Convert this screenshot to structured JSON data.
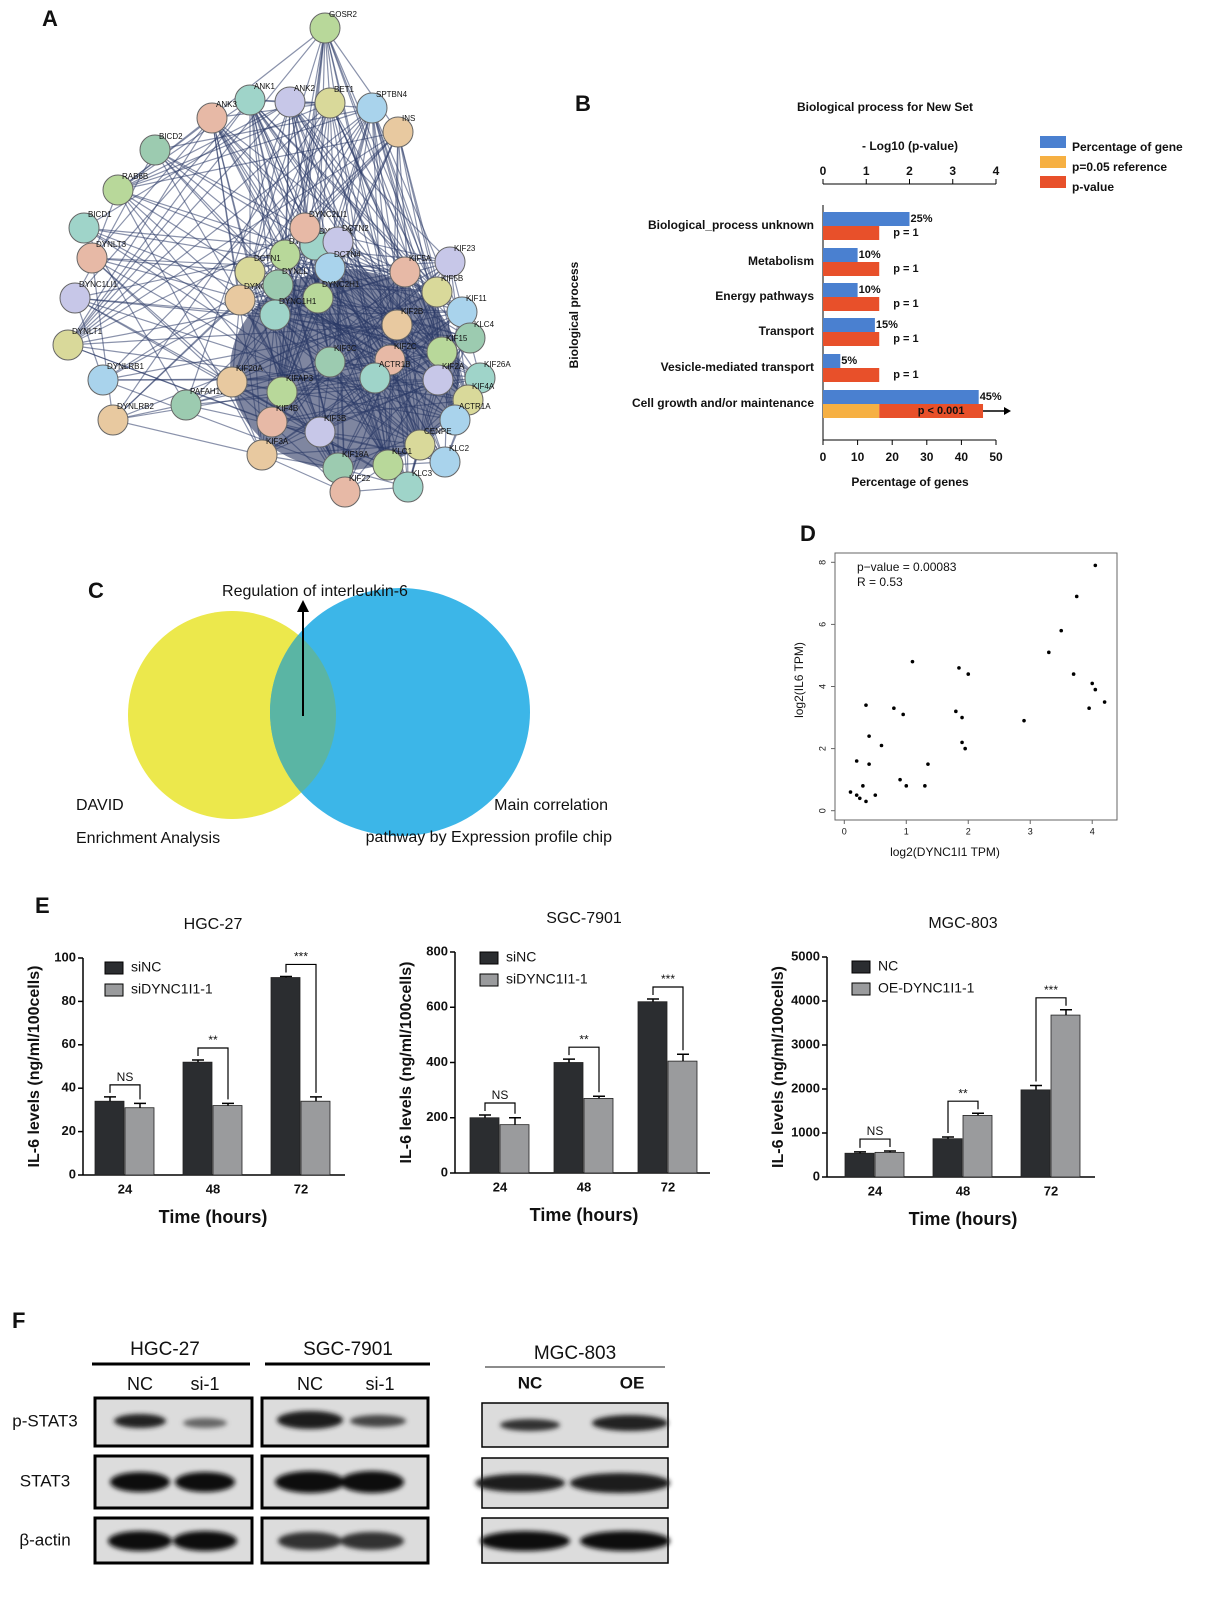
{
  "panel_labels": [
    "A",
    "B",
    "C",
    "D",
    "E",
    "F"
  ],
  "network": {
    "nodes": [
      "GOSR2",
      "ANK1",
      "ANK3",
      "ANK2",
      "BET1",
      "SPTBN4",
      "INS",
      "BICD2",
      "RAB6B",
      "BICD1",
      "DYNLT3",
      "DYNC1LI1",
      "DYNLT1",
      "DYNLRB1",
      "DYNLRB2",
      "PAFAH1B1",
      "DYNL",
      "DYNC1I1",
      "DYNC2LI1",
      "DCTN2",
      "DCTN1",
      "DCTN4",
      "DYNC1LI2",
      "DYNLL",
      "DYNC2H1",
      "DYNC1H1",
      "KIF5A",
      "KIF23",
      "KIF5B",
      "KIF11",
      "KIF2B",
      "KLC4",
      "KIF15",
      "KIF26A",
      "KIF2C",
      "KIF2A",
      "KIF4A",
      "ACTR1A",
      "KIF20A",
      "KIF3C",
      "KIFAP3",
      "ACTR1B",
      "KIF4B",
      "KIF3B",
      "CENPE",
      "KLC2",
      "KIF3A",
      "KIF18A",
      "KLC1",
      "KLC3",
      "KIF22"
    ]
  },
  "venn": {
    "top_label": "Regulation of interleukin-6",
    "left_labels": [
      "DAVID",
      "Enrichment Analysis"
    ],
    "right_labels": [
      "Main correlation",
      "pathway by Expression profile chip"
    ]
  },
  "chart_data": [
    {
      "type": "hbar",
      "title": "Biological process for New Set",
      "x2_label": "- Log10 (p-value)",
      "xlabel": "Percentage of genes",
      "ylabel": "Biological process",
      "categories": [
        "Biological_process unknown",
        "Metabolism",
        "Energy pathways",
        "Transport",
        "Vesicle-mediated transport",
        "Cell growth and/or maintenance"
      ],
      "xlim": [
        0,
        50
      ],
      "xticks": [
        0,
        10,
        20,
        30,
        40,
        50
      ],
      "x2lim": [
        0,
        4
      ],
      "x2ticks": [
        0,
        1,
        2,
        3,
        4
      ],
      "stacked": true,
      "series": [
        {
          "name": "Percentage of gene",
          "color": "#4a80d0",
          "values": [
            25,
            10,
            10,
            15,
            5,
            45
          ],
          "value_labels": [
            "25%",
            "10%",
            "10%",
            "15%",
            "5%",
            "45%"
          ]
        },
        {
          "name": "p=0.05 reference",
          "color": "#f6b043",
          "axis": "x2",
          "values": [
            null,
            null,
            null,
            null,
            null,
            1.3
          ]
        },
        {
          "name": "p-value",
          "color": "#e8502a",
          "axis": "x2",
          "values": [
            1.3,
            1.3,
            1.3,
            1.3,
            1.3,
            2.4
          ]
        }
      ],
      "annotations": [
        "p = 1",
        "p = 1",
        "p = 1",
        "p = 1",
        "p = 1",
        "p < 0.001"
      ]
    },
    {
      "type": "scatter",
      "xlabel": "log2(DYNC1I1 TPM)",
      "ylabel": "log2(IL6 TPM)",
      "annotations": [
        "p−value = 0.00083",
        "R = 0.53"
      ],
      "x": [
        0.1,
        0.2,
        0.2,
        0.25,
        0.3,
        0.35,
        0.35,
        0.4,
        0.4,
        0.5,
        0.6,
        0.8,
        0.9,
        0.95,
        1.0,
        1.1,
        1.3,
        1.35,
        1.8,
        1.85,
        1.9,
        1.9,
        1.95,
        2.0,
        2.9,
        3.3,
        3.5,
        3.7,
        3.75,
        3.95,
        4.0,
        4.05,
        4.05,
        4.2
      ],
      "values": [
        0.6,
        0.5,
        1.6,
        0.4,
        0.8,
        0.3,
        3.4,
        1.5,
        2.4,
        0.5,
        2.1,
        3.3,
        1.0,
        3.1,
        0.8,
        4.8,
        0.8,
        1.5,
        3.2,
        4.6,
        3.0,
        2.2,
        2.0,
        4.4,
        2.9,
        5.1,
        5.8,
        4.4,
        6.9,
        3.3,
        4.1,
        3.9,
        7.9,
        3.5
      ],
      "xlim": [
        -0.15,
        4.4
      ],
      "xticks": [
        0,
        1,
        2,
        3,
        4
      ],
      "ylim": [
        -0.3,
        8.3
      ],
      "yticks": [
        0,
        2,
        4,
        6,
        8
      ]
    },
    {
      "type": "grouped_bar",
      "title": "HGC-27",
      "xlabel": "Time (hours)",
      "ylabel": "IL-6 levels (ng/ml/100cells)",
      "categories": [
        "24",
        "48",
        "72"
      ],
      "series": [
        {
          "name": "siNC",
          "color": "#2b2d30",
          "values": [
            34,
            52,
            91
          ],
          "errors": [
            2,
            1,
            0.5
          ]
        },
        {
          "name": "siDYNC1I1-1",
          "color": "#9a9b9d",
          "values": [
            31,
            32,
            34
          ],
          "errors": [
            2,
            1,
            2
          ]
        }
      ],
      "significance": [
        "NS",
        "**",
        "***"
      ],
      "ylim": [
        0,
        100
      ],
      "yticks": [
        0,
        20,
        40,
        60,
        80,
        100
      ]
    },
    {
      "type": "grouped_bar",
      "title": "SGC-7901",
      "xlabel": "Time (hours)",
      "ylabel": "IL-6 levels (ng/ml/100cells)",
      "categories": [
        "24",
        "48",
        "72"
      ],
      "series": [
        {
          "name": "siNC",
          "color": "#2b2d30",
          "values": [
            200,
            400,
            620
          ],
          "errors": [
            10,
            12,
            10
          ]
        },
        {
          "name": "siDYNC1I1-1",
          "color": "#9a9b9d",
          "values": [
            175,
            270,
            405
          ],
          "errors": [
            25,
            8,
            25
          ]
        }
      ],
      "significance": [
        "NS",
        "**",
        "***"
      ],
      "ylim": [
        0,
        800
      ],
      "yticks": [
        0,
        200,
        400,
        600,
        800
      ]
    },
    {
      "type": "grouped_bar",
      "title": "MGC-803",
      "xlabel": "Time (hours)",
      "ylabel": "IL-6 levels (ng/ml/100cells)",
      "categories": [
        "24",
        "48",
        "72"
      ],
      "series": [
        {
          "name": "NC",
          "color": "#2b2d30",
          "values": [
            540,
            870,
            1980
          ],
          "errors": [
            30,
            40,
            100
          ]
        },
        {
          "name": "OE-DYNC1I1-1",
          "color": "#9a9b9d",
          "values": [
            560,
            1400,
            3680
          ],
          "errors": [
            30,
            50,
            120
          ]
        }
      ],
      "significance": [
        "NS",
        "**",
        "***"
      ],
      "ylim": [
        0,
        5000
      ],
      "yticks": [
        0,
        1000,
        2000,
        3000,
        4000,
        5000
      ]
    }
  ],
  "blot": {
    "groups": [
      "HGC-27",
      "SGC-7901",
      "MGC-803"
    ],
    "lanes": [
      "NC",
      "si-1",
      "NC",
      "si-1",
      "NC",
      "OE"
    ],
    "rows": [
      "p-STAT3",
      "STAT3",
      "β-actin"
    ]
  }
}
